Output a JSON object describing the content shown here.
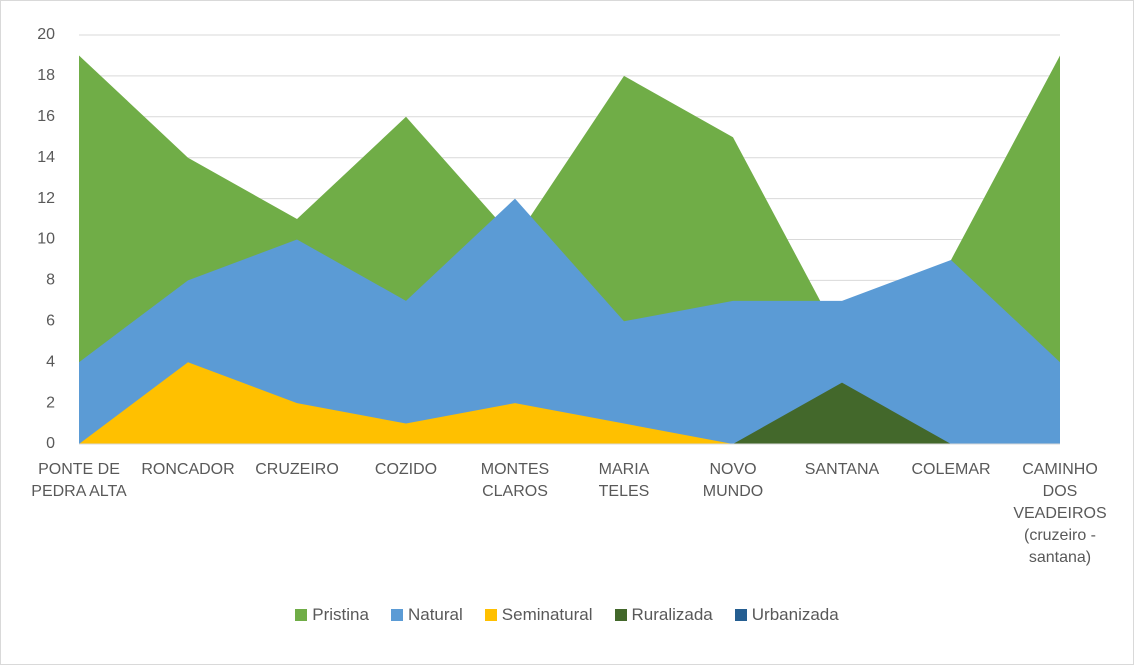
{
  "chart_data": {
    "type": "area",
    "categories": [
      "PONTE DE PEDRA ALTA",
      "RONCADOR",
      "CRUZEIRO",
      "COZIDO",
      "MONTES CLAROS",
      "MARIA TELES",
      "NOVO MUNDO",
      "SANTANA",
      "COLEMAR",
      "CAMINHO DOS VEADEIROS (cruzeiro - santana)"
    ],
    "series": [
      {
        "name": "Pristina",
        "color": "#70ad47",
        "values": [
          19,
          14,
          11,
          16,
          10,
          18,
          15,
          5,
          9,
          19
        ]
      },
      {
        "name": "Natural",
        "color": "#5b9bd5",
        "values": [
          4,
          8,
          10,
          7,
          12,
          6,
          7,
          7,
          9,
          4
        ]
      },
      {
        "name": "Seminatural",
        "color": "#ffc000",
        "values": [
          0,
          4,
          2,
          1,
          2,
          1,
          0,
          0,
          0,
          0
        ]
      },
      {
        "name": "Ruralizada",
        "color": "#43682b",
        "values": [
          0,
          0,
          0,
          0,
          0,
          0,
          0,
          3,
          0,
          0
        ]
      },
      {
        "name": "Urbanizada",
        "color": "#255e91",
        "values": [
          0,
          0,
          0,
          0,
          0,
          0,
          0,
          0,
          0,
          0
        ]
      }
    ],
    "ylim": [
      0,
      20
    ],
    "yticks": [
      0,
      2,
      4,
      6,
      8,
      10,
      12,
      14,
      16,
      18,
      20
    ],
    "grid": true,
    "legend": "bottom"
  }
}
